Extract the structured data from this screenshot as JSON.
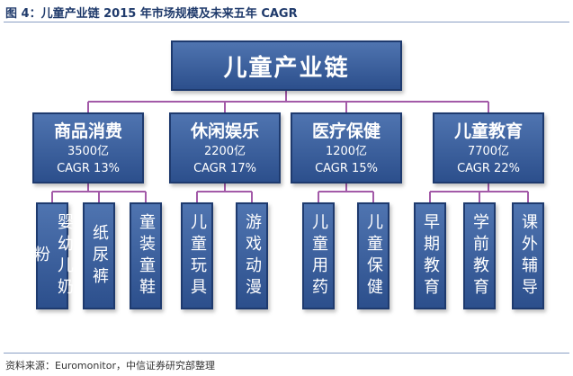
{
  "caption": "图 4：儿童产业链 2015 年市场规模及未来五年 CAGR",
  "source": "资料来源：Euromonitor，中信证券研究部整理",
  "root": {
    "label": "儿童产业链"
  },
  "categories": [
    {
      "name": "商品消费",
      "size": "3500亿",
      "cagr": "CAGR 13%",
      "leaves": [
        "婴幼儿奶粉",
        "纸尿裤",
        "童装童鞋"
      ]
    },
    {
      "name": "休闲娱乐",
      "size": "2200亿",
      "cagr": "CAGR 17%",
      "leaves": [
        "儿童玩具",
        "游戏动漫"
      ]
    },
    {
      "name": "医疗保健",
      "size": "1200亿",
      "cagr": "CAGR 15%",
      "leaves": [
        "儿童用药",
        "儿童保健"
      ]
    },
    {
      "name": "儿童教育",
      "size": "7700亿",
      "cagr": "CAGR 22%",
      "leaves": [
        "早期教育",
        "学前教育",
        "课外辅导"
      ]
    }
  ],
  "colors": {
    "box_top": "#4f74b0",
    "box_bottom": "#2c4f8c",
    "connector": "#a35aa8"
  }
}
